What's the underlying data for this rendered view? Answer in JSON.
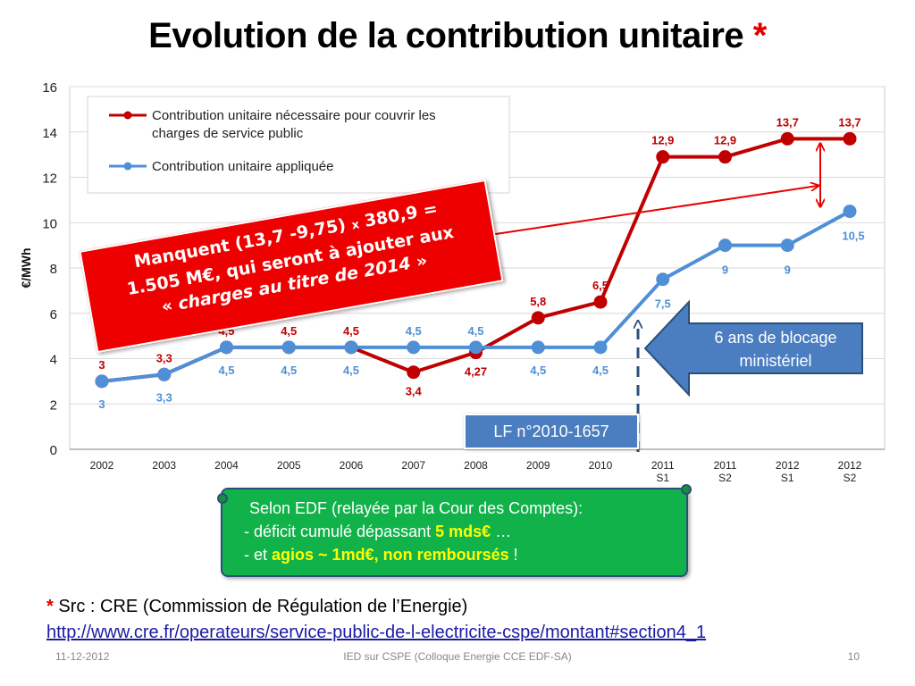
{
  "title": {
    "text": "Evolution de la contribution unitaire",
    "star": "*"
  },
  "chart_data": {
    "type": "line",
    "ylabel": "€/MWh",
    "ylim": [
      0,
      16
    ],
    "yticks": [
      "0",
      "2",
      "4",
      "6",
      "8",
      "10",
      "12",
      "14",
      "16"
    ],
    "categories": [
      [
        "2002"
      ],
      [
        "2003"
      ],
      [
        "2004"
      ],
      [
        "2005"
      ],
      [
        "2006"
      ],
      [
        "2007"
      ],
      [
        "2008"
      ],
      [
        "2009"
      ],
      [
        "2010"
      ],
      [
        "2011",
        "S1"
      ],
      [
        "2011",
        "S2"
      ],
      [
        "2012",
        "S1"
      ],
      [
        "2012",
        "S2"
      ]
    ],
    "grid": "horizontal",
    "legend_placement": "top-left",
    "series": [
      {
        "name": "Contribution unitaire nécessaire pour couvrir les charges de service public",
        "legend_lines": [
          "Contribution unitaire nécessaire pour couvrir les",
          "charges de service public"
        ],
        "color": "#c00000",
        "values": [
          3,
          3.3,
          4.5,
          4.5,
          4.5,
          3.4,
          4.27,
          5.8,
          6.5,
          12.9,
          12.9,
          13.7,
          13.7
        ],
        "labels": [
          "3",
          "3,3",
          "4,5",
          "4,5",
          "4,5",
          "3,4",
          "4,27",
          "5,8",
          "6,5",
          "12,9",
          "12,9",
          "13,7",
          "13,7"
        ]
      },
      {
        "name": "Contribution unitaire appliquée",
        "legend_lines": [
          "Contribution unitaire appliquée"
        ],
        "color": "#4f8fd6",
        "values": [
          3,
          3.3,
          4.5,
          4.5,
          4.5,
          4.5,
          4.5,
          4.5,
          4.5,
          7.5,
          9,
          9,
          10.5
        ],
        "labels": [
          "3",
          "3,3",
          "4,5",
          "4,5",
          "4,5",
          "4,5",
          "4,5",
          "4,5",
          "4,5",
          "7,5",
          "9",
          "9",
          "10,5"
        ]
      }
    ]
  },
  "callouts": {
    "manquent": {
      "line1_a": "Manquent (13,7 -9,75)",
      "line1_x": "x",
      "line1_b": "380,9 =",
      "line2": "1.505 M€, qui seront à ajouter aux",
      "line3_open": "«",
      "line3_italic": "charges au titre de 2014",
      "line3_close": "»"
    },
    "blocage": {
      "line1": "6 ans de blocage",
      "line2": "ministériel"
    },
    "lf": "LF n°2010-1657",
    "edf": {
      "line1": "Selon EDF  (relayée par la Cour des Comptes):",
      "line2_a": "- déficit cumulé dépassant",
      "line2_b": "5 mds€",
      "line2_c": "…",
      "line3_a": "- et",
      "line3_b": "agios ~ 1md€, non remboursés",
      "line3_c": "!"
    }
  },
  "source": {
    "star": "*",
    "text": "Src : CRE (Commission de Régulation de l’Energie)",
    "url": "http://www.cre.fr/operateurs/service-public-de-l-electricite-cspe/montant#section4_1"
  },
  "footer": {
    "date": "11-12-2012",
    "center": "IED sur CSPE (Colloque Energie CCE EDF-SA)",
    "page": "10"
  },
  "colors": {
    "red_callout": "#ee0000",
    "blue_box": "#4a7ec0",
    "green_box": "#12b24a",
    "highlight_yellow": "#ffff00"
  }
}
